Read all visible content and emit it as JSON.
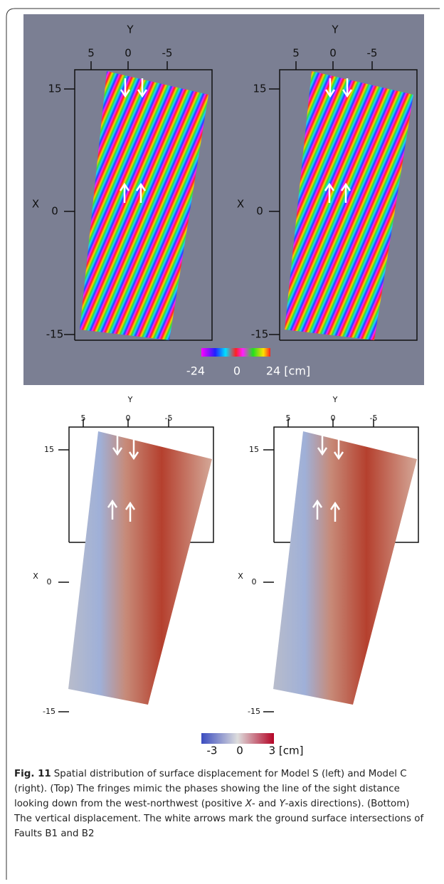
{
  "top": {
    "axis_labels": {
      "y": "Y",
      "x": "X"
    },
    "y_ticks": [
      "5",
      "0",
      "-5"
    ],
    "x_ticks": [
      "15",
      "0",
      "-15"
    ],
    "colorbar_labels": [
      "-24",
      "0",
      "24 [cm]"
    ]
  },
  "bottom": {
    "axis_labels": {
      "y": "Y",
      "x": "X"
    },
    "y_ticks": [
      "5",
      "0",
      "-5"
    ],
    "x_ticks": [
      "15",
      "0",
      "-15"
    ],
    "colorbar_labels": [
      "-3",
      "0",
      "3 [cm]"
    ]
  },
  "caption": {
    "label": "Fig. 11",
    "segments": [
      "Spatial distribution of surface displacement for Model S (left) and Model C (right). (Top) The fringes mimic the phases showing the line of the sight distance looking down from the west-northwest (positive ",
      "X",
      "- and ",
      "Y",
      "-axis directions). (Bottom) The vertical displacement. The white arrows mark the ground surface intersections of Faults B1 and B2"
    ]
  }
}
